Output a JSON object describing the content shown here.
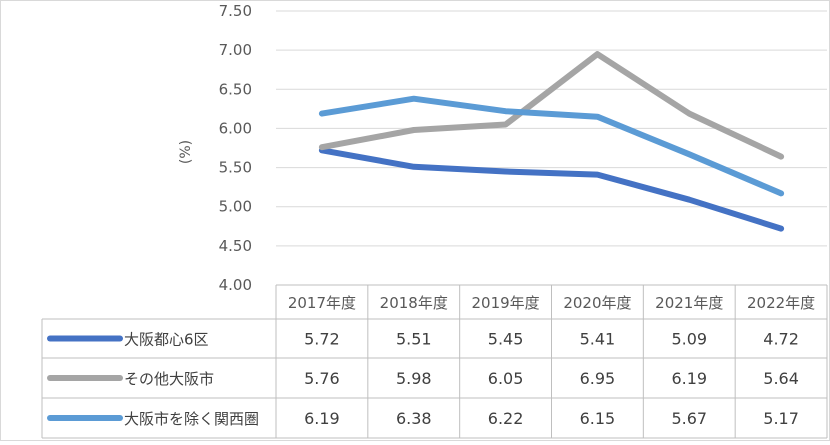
{
  "chart_data": {
    "type": "line",
    "ylabel": "(%)",
    "ylim": [
      4.0,
      7.5
    ],
    "yticks": [
      "4.00",
      "4.50",
      "5.00",
      "5.50",
      "6.00",
      "6.50",
      "7.00",
      "7.50"
    ],
    "categories": [
      "2017年度",
      "2018年度",
      "2019年度",
      "2020年度",
      "2021年度",
      "2022年度"
    ],
    "grid": true,
    "legend": "data-table-rows",
    "series": [
      {
        "name": "大阪都心6区",
        "color": "#4472c4",
        "values": [
          5.72,
          5.51,
          5.45,
          5.41,
          5.09,
          4.72
        ],
        "labels": [
          "5.72",
          "5.51",
          "5.45",
          "5.41",
          "5.09",
          "4.72"
        ]
      },
      {
        "name": "その他大阪市",
        "color": "#a5a5a5",
        "values": [
          5.76,
          5.98,
          6.05,
          6.95,
          6.19,
          5.64
        ],
        "labels": [
          "5.76",
          "5.98",
          "6.05",
          "6.95",
          "6.19",
          "5.64"
        ]
      },
      {
        "name": "大阪市を除く関西圏",
        "color": "#5b9bd5",
        "values": [
          6.19,
          6.38,
          6.22,
          6.15,
          5.67,
          5.17
        ],
        "labels": [
          "6.19",
          "6.38",
          "6.22",
          "6.15",
          "5.67",
          "5.17"
        ]
      }
    ]
  }
}
